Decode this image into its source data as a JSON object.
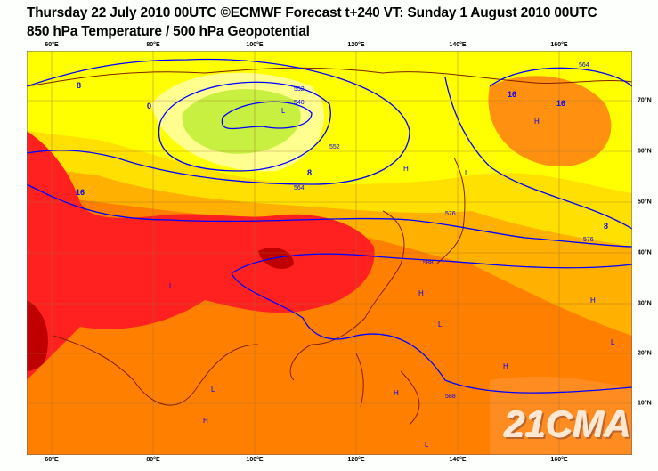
{
  "header": {
    "title": "Thursday 22 July 2010 00UTC ©ECMWF Forecast t+240 VT: Sunday 1 August 2010 00UTC",
    "subtitle": "850 hPa Temperature / 500 hPa Geopotential"
  },
  "axes": {
    "longitude_labels": [
      "60°E",
      "80°E",
      "100°E",
      "120°E",
      "140°E",
      "160°E"
    ],
    "latitude_labels": [
      "70°N",
      "60°N",
      "50°N",
      "40°N",
      "30°N",
      "20°N",
      "10°N"
    ]
  },
  "map": {
    "geopotential_labels": [
      "540",
      "552",
      "564",
      "576",
      "588"
    ],
    "temperature_labels": [
      "0",
      "8",
      "16"
    ],
    "pressure_centers": [
      "H",
      "L"
    ],
    "colors": {
      "cold_green": "#c8f040",
      "light_yellow": "#ffff90",
      "yellow": "#ffff00",
      "gold": "#ffc000",
      "orange": "#ff7f00",
      "red": "#ff2020",
      "dark_red": "#c00000",
      "contour": "#0000ff",
      "coast": "#802000"
    }
  },
  "watermark": "21CMA"
}
